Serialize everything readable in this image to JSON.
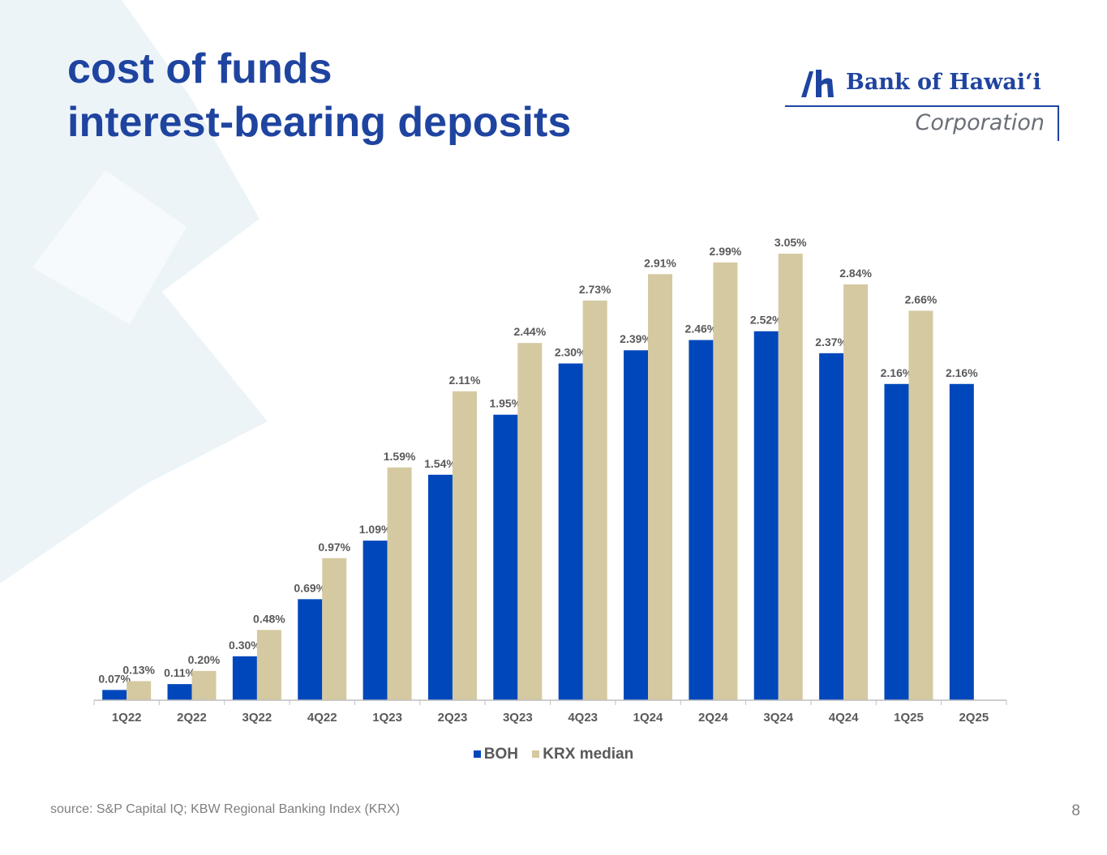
{
  "slide": {
    "title_line1": "cost of funds",
    "title_line2": "interest-bearing deposits",
    "source": "source: S&P Capital IQ; KBW Regional Banking Index (KRX)",
    "page_number": "8"
  },
  "logo": {
    "name": "Bank of Hawaiʻi",
    "subtitle": "Corporation",
    "color": "#1f44a0"
  },
  "colors": {
    "title": "#1f44a0",
    "boh": "#0047bb",
    "krx": "#d5c9a1",
    "labels": "#595959",
    "background_shape": "#edf4f8"
  },
  "chart_data": {
    "type": "bar",
    "categories": [
      "1Q22",
      "2Q22",
      "3Q22",
      "4Q22",
      "1Q23",
      "2Q23",
      "3Q23",
      "4Q23",
      "1Q24",
      "2Q24",
      "3Q24",
      "4Q24",
      "1Q25",
      "2Q25"
    ],
    "series": [
      {
        "name": "BOH",
        "color": "#0047bb",
        "values": [
          0.07,
          0.11,
          0.3,
          0.69,
          1.09,
          1.54,
          1.95,
          2.3,
          2.39,
          2.46,
          2.52,
          2.37,
          2.16,
          2.16
        ],
        "labels": [
          "0.07%",
          "0.11%",
          "0.30%",
          "0.69%",
          "1.09%",
          "1.54%",
          "1.95%",
          "2.30%",
          "2.39%",
          "2.46%",
          "2.52%",
          "2.37%",
          "2.16%",
          "2.16%"
        ]
      },
      {
        "name": "KRX median",
        "color": "#d5c9a1",
        "values": [
          0.13,
          0.2,
          0.48,
          0.97,
          1.59,
          2.11,
          2.44,
          2.73,
          2.91,
          2.99,
          3.05,
          2.84,
          2.66,
          null
        ],
        "labels": [
          "0.13%",
          "0.20%",
          "0.48%",
          "0.97%",
          "1.59%",
          "2.11%",
          "2.44%",
          "2.73%",
          "2.91%",
          "2.99%",
          "3.05%",
          "2.84%",
          "2.66%",
          ""
        ]
      }
    ],
    "ylim": [
      0,
      3.05
    ],
    "data_labels": true,
    "grid": false,
    "legend": "bottom-center"
  }
}
